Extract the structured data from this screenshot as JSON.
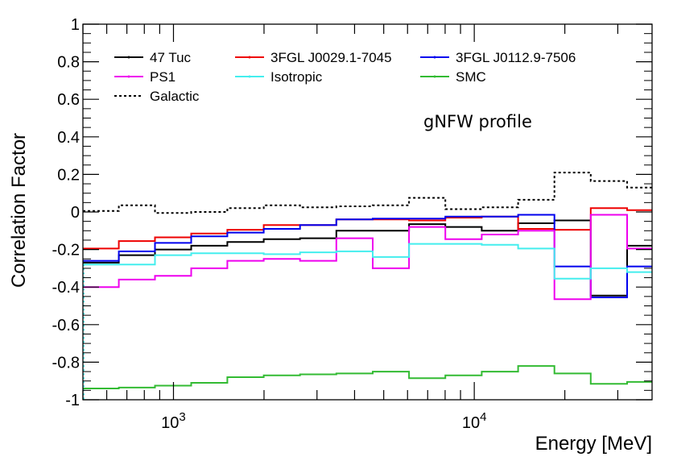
{
  "chart_data": {
    "type": "step",
    "title": "",
    "annotation": "gNFW profile",
    "xlabel": "Energy [MeV]",
    "ylabel": "Correlation Factor",
    "xscale": "log",
    "xlim": [
      500,
      39000
    ],
    "ylim": [
      -1,
      1
    ],
    "x_tick_labels": [
      {
        "value": 1000,
        "base": "10",
        "exp": "3"
      },
      {
        "value": 10000,
        "base": "10",
        "exp": "4"
      }
    ],
    "y_ticks": [
      -1,
      -0.8,
      -0.6,
      -0.4,
      -0.2,
      0,
      0.2,
      0.4,
      0.6,
      0.8,
      1
    ],
    "y_tick_labels": [
      "-1",
      "-0.8",
      "-0.6",
      "-0.4",
      "-0.2",
      "0",
      "0.2",
      "0.4",
      "0.6",
      "0.8",
      "1"
    ],
    "bin_edges": [
      500,
      658,
      868,
      1145,
      1510,
      1995,
      2635,
      3480,
      4595,
      6070,
      8015,
      10590,
      13985,
      18470,
      24390,
      32210,
      39000
    ],
    "legend_position": "top",
    "series": [
      {
        "name": "47 Tuc",
        "color": "#000000",
        "dash": "solid",
        "values": [
          -0.27,
          -0.23,
          -0.2,
          -0.18,
          -0.16,
          -0.145,
          -0.14,
          -0.1,
          -0.1,
          -0.065,
          -0.08,
          -0.1,
          -0.06,
          -0.045,
          -0.445,
          -0.18
        ]
      },
      {
        "name": "3FGL J0029.1-7045",
        "color": "#ee0000",
        "dash": "solid",
        "values": [
          -0.195,
          -0.155,
          -0.135,
          -0.115,
          -0.095,
          -0.07,
          -0.07,
          -0.04,
          -0.04,
          -0.045,
          -0.03,
          -0.025,
          -0.09,
          -0.095,
          0.02,
          0.01
        ]
      },
      {
        "name": "3FGL J0112.9-7506",
        "color": "#0000ee",
        "dash": "solid",
        "values": [
          -0.26,
          -0.21,
          -0.165,
          -0.13,
          -0.11,
          -0.09,
          -0.07,
          -0.04,
          -0.035,
          -0.035,
          -0.025,
          -0.025,
          -0.015,
          -0.29,
          -0.455,
          -0.29
        ]
      },
      {
        "name": "PS1",
        "color": "#ee00ee",
        "dash": "solid",
        "values": [
          -0.4,
          -0.36,
          -0.34,
          -0.3,
          -0.26,
          -0.25,
          -0.26,
          -0.14,
          -0.3,
          -0.08,
          -0.145,
          -0.12,
          -0.1,
          -0.465,
          -0.015,
          -0.195
        ]
      },
      {
        "name": "Isotropic",
        "color": "#44eeee",
        "dash": "solid",
        "values": [
          -0.28,
          -0.28,
          -0.23,
          -0.22,
          -0.22,
          -0.225,
          -0.215,
          -0.21,
          -0.24,
          -0.17,
          -0.17,
          -0.175,
          -0.195,
          -0.355,
          -0.3,
          -0.32
        ]
      },
      {
        "name": "SMC",
        "color": "#33bb33",
        "dash": "solid",
        "values": [
          -0.94,
          -0.935,
          -0.925,
          -0.91,
          -0.88,
          -0.87,
          -0.865,
          -0.86,
          -0.85,
          -0.885,
          -0.87,
          -0.85,
          -0.82,
          -0.86,
          -0.915,
          -0.905
        ]
      },
      {
        "name": "Galactic",
        "color": "#000000",
        "dash": "dotted",
        "values": [
          0.005,
          0.035,
          -0.005,
          0.0,
          0.02,
          0.035,
          0.025,
          0.03,
          0.035,
          0.075,
          0.015,
          0.025,
          0.065,
          0.21,
          0.165,
          0.13
        ]
      }
    ]
  }
}
